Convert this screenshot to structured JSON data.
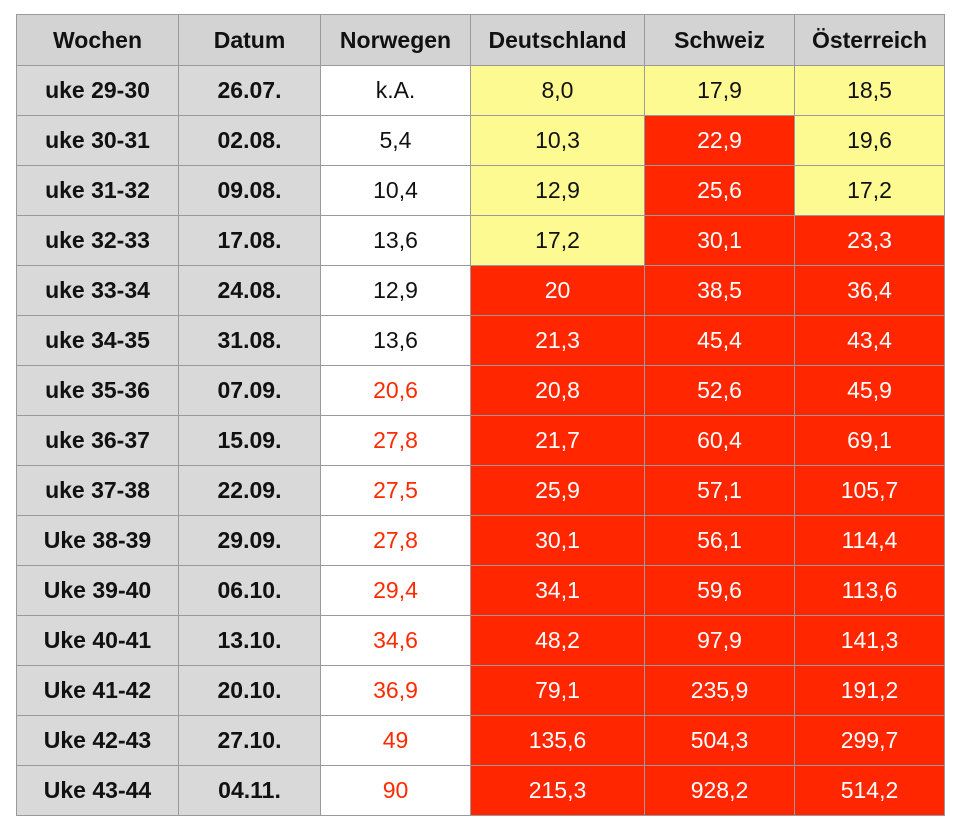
{
  "table": {
    "headers": [
      "Wochen",
      "Datum",
      "Norwegen",
      "Deutschland",
      "Schweiz",
      "Österreich"
    ],
    "colors": {
      "yellow_fill": "#fdfa92",
      "red_fill": "#ff2600",
      "header_fill": "#d3d3d3",
      "label_fill": "#d9d9d9",
      "red_text": "#ff2a00",
      "white_text": "#ffffff"
    },
    "rows": [
      {
        "wochen": "uke 29-30",
        "datum": "26.07.",
        "cells": [
          {
            "value": "k.A.",
            "style": "plain"
          },
          {
            "value": "8,0",
            "style": "yellow"
          },
          {
            "value": "17,9",
            "style": "yellow"
          },
          {
            "value": "18,5",
            "style": "yellow"
          }
        ]
      },
      {
        "wochen": "uke 30-31",
        "datum": "02.08.",
        "cells": [
          {
            "value": "5,4",
            "style": "plain"
          },
          {
            "value": "10,3",
            "style": "yellow"
          },
          {
            "value": "22,9",
            "style": "red"
          },
          {
            "value": "19,6",
            "style": "yellow"
          }
        ]
      },
      {
        "wochen": "uke 31-32",
        "datum": "09.08.",
        "cells": [
          {
            "value": "10,4",
            "style": "plain"
          },
          {
            "value": "12,9",
            "style": "yellow"
          },
          {
            "value": "25,6",
            "style": "red"
          },
          {
            "value": "17,2",
            "style": "yellow"
          }
        ]
      },
      {
        "wochen": "uke 32-33",
        "datum": "17.08.",
        "cells": [
          {
            "value": "13,6",
            "style": "plain"
          },
          {
            "value": "17,2",
            "style": "yellow"
          },
          {
            "value": "30,1",
            "style": "red"
          },
          {
            "value": "23,3",
            "style": "red"
          }
        ]
      },
      {
        "wochen": "uke 33-34",
        "datum": "24.08.",
        "cells": [
          {
            "value": "12,9",
            "style": "plain"
          },
          {
            "value": "20",
            "style": "red"
          },
          {
            "value": "38,5",
            "style": "red"
          },
          {
            "value": "36,4",
            "style": "red"
          }
        ]
      },
      {
        "wochen": "uke 34-35",
        "datum": "31.08.",
        "cells": [
          {
            "value": "13,6",
            "style": "plain"
          },
          {
            "value": "21,3",
            "style": "red"
          },
          {
            "value": "45,4",
            "style": "red"
          },
          {
            "value": "43,4",
            "style": "red"
          }
        ]
      },
      {
        "wochen": "uke 35-36",
        "datum": "07.09.",
        "cells": [
          {
            "value": "20,6",
            "style": "warn"
          },
          {
            "value": "20,8",
            "style": "red"
          },
          {
            "value": "52,6",
            "style": "red"
          },
          {
            "value": "45,9",
            "style": "red"
          }
        ]
      },
      {
        "wochen": "uke 36-37",
        "datum": "15.09.",
        "cells": [
          {
            "value": "27,8",
            "style": "warn"
          },
          {
            "value": "21,7",
            "style": "red"
          },
          {
            "value": "60,4",
            "style": "red"
          },
          {
            "value": "69,1",
            "style": "red"
          }
        ]
      },
      {
        "wochen": "uke 37-38",
        "datum": "22.09.",
        "cells": [
          {
            "value": "27,5",
            "style": "warn"
          },
          {
            "value": "25,9",
            "style": "red"
          },
          {
            "value": "57,1",
            "style": "red"
          },
          {
            "value": "105,7",
            "style": "red"
          }
        ]
      },
      {
        "wochen": "Uke 38-39",
        "datum": "29.09.",
        "cells": [
          {
            "value": "27,8",
            "style": "warn"
          },
          {
            "value": "30,1",
            "style": "red"
          },
          {
            "value": "56,1",
            "style": "red"
          },
          {
            "value": "114,4",
            "style": "red"
          }
        ]
      },
      {
        "wochen": "Uke 39-40",
        "datum": "06.10.",
        "cells": [
          {
            "value": "29,4",
            "style": "warn"
          },
          {
            "value": "34,1",
            "style": "red"
          },
          {
            "value": "59,6",
            "style": "red"
          },
          {
            "value": "113,6",
            "style": "red"
          }
        ]
      },
      {
        "wochen": "Uke 40-41",
        "datum": "13.10.",
        "cells": [
          {
            "value": "34,6",
            "style": "warn"
          },
          {
            "value": "48,2",
            "style": "red"
          },
          {
            "value": "97,9",
            "style": "red"
          },
          {
            "value": "141,3",
            "style": "red"
          }
        ]
      },
      {
        "wochen": "Uke 41-42",
        "datum": "20.10.",
        "cells": [
          {
            "value": "36,9",
            "style": "warn"
          },
          {
            "value": "79,1",
            "style": "red"
          },
          {
            "value": "235,9",
            "style": "red"
          },
          {
            "value": "191,2",
            "style": "red"
          }
        ]
      },
      {
        "wochen": "Uke 42-43",
        "datum": "27.10.",
        "cells": [
          {
            "value": "49",
            "style": "warn"
          },
          {
            "value": "135,6",
            "style": "red"
          },
          {
            "value": "504,3",
            "style": "red"
          },
          {
            "value": "299,7",
            "style": "red"
          }
        ]
      },
      {
        "wochen": "Uke 43-44",
        "datum": "04.11.",
        "cells": [
          {
            "value": "90",
            "style": "warn"
          },
          {
            "value": "215,3",
            "style": "red"
          },
          {
            "value": "928,2",
            "style": "red"
          },
          {
            "value": "514,2",
            "style": "red"
          }
        ]
      }
    ]
  }
}
